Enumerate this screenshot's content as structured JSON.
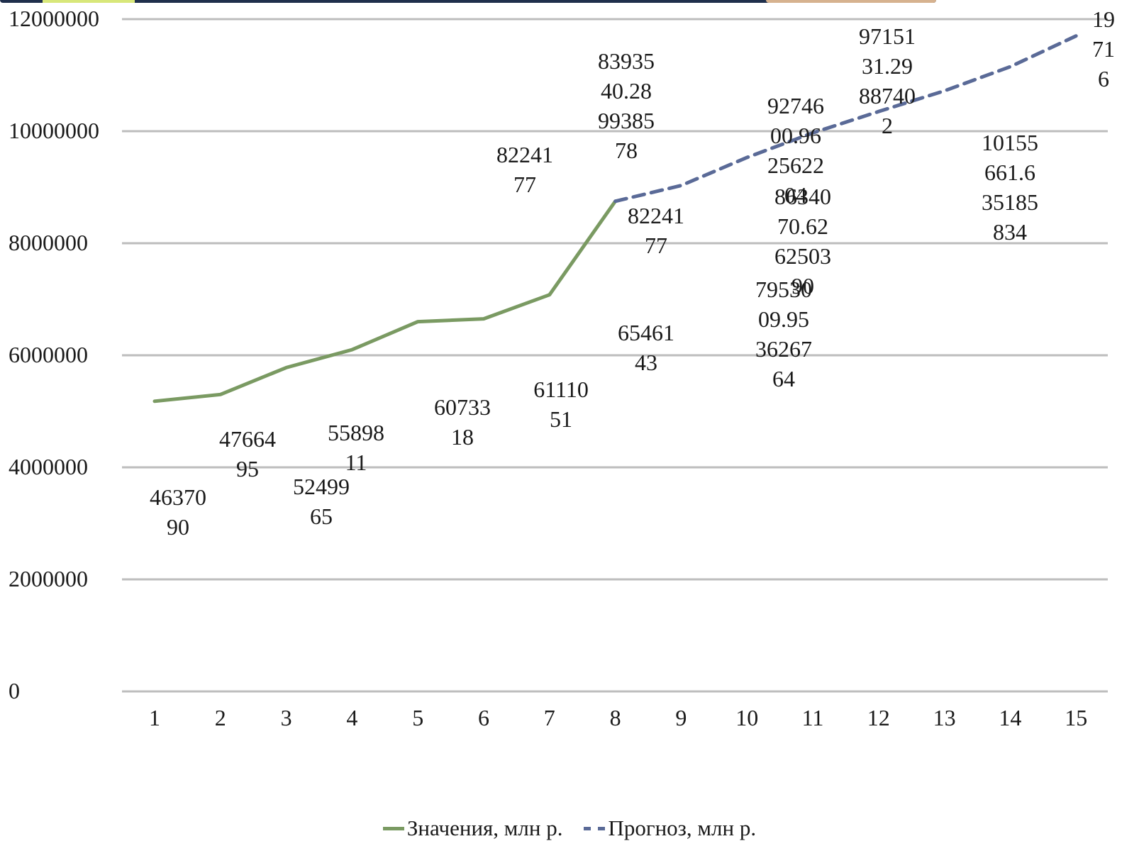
{
  "colors": {
    "values_line": "#7a9a62",
    "forecast_line": "#5a6a97",
    "grid": "#bdbdbd"
  },
  "legend": {
    "values_label": "Значения, млн р.",
    "forecast_label": "Прогноз, млн р."
  },
  "chart_data": {
    "type": "line",
    "title": "",
    "xlabel": "",
    "ylabel": "",
    "x": [
      "1",
      "2",
      "3",
      "4",
      "5",
      "6",
      "7",
      "8",
      "9",
      "10",
      "11",
      "12",
      "13",
      "14",
      "15"
    ],
    "ylim": [
      0,
      12000000
    ],
    "yticks": [
      "0",
      "2000000",
      "4000000",
      "6000000",
      "8000000",
      "10000000",
      "12000000"
    ],
    "grid": true,
    "legend_position": "bottom",
    "series": [
      {
        "name": "Значения, млн р.",
        "style": "solid",
        "x": [
          1,
          2,
          3,
          4,
          5,
          6,
          7,
          8
        ],
        "y": [
          5180000,
          5300000,
          5780000,
          6100000,
          6600000,
          6650000,
          7080000,
          8750000
        ]
      },
      {
        "name": "Прогноз, млн р.",
        "style": "dashed",
        "x": [
          8,
          9,
          10,
          11,
          12,
          13,
          14,
          15
        ],
        "y": [
          8750000,
          9030000,
          9530000,
          9970000,
          10350000,
          10720000,
          11150000,
          11700000
        ]
      }
    ],
    "annotations": [
      {
        "id": "1",
        "lines": [
          "46370",
          "90"
        ]
      },
      {
        "id": "2",
        "lines": [
          "47664",
          "95"
        ]
      },
      {
        "id": "3",
        "lines": [
          "52499",
          "65"
        ]
      },
      {
        "id": "4",
        "lines": [
          "55898",
          "11"
        ]
      },
      {
        "id": "5",
        "lines": [
          "60733",
          "18"
        ]
      },
      {
        "id": "6",
        "lines": [
          "61110",
          "51"
        ]
      },
      {
        "id": "7",
        "lines": [
          "82241",
          "77"
        ]
      },
      {
        "id": "8",
        "lines": [
          "83935",
          "40.28",
          "99385",
          "78"
        ]
      },
      {
        "id": "9",
        "lines": [
          "82241",
          "77"
        ]
      },
      {
        "id": "10",
        "lines": [
          "65461",
          "43"
        ]
      },
      {
        "id": "11",
        "lines": [
          "92746",
          "00.96",
          "25622",
          "04"
        ]
      },
      {
        "id": "12",
        "lines": [
          "86340",
          "70.62",
          "62503",
          "90"
        ]
      },
      {
        "id": "13",
        "lines": [
          "79530",
          "09.95",
          "36267",
          "64"
        ]
      },
      {
        "id": "14",
        "lines": [
          "97151",
          "31.29",
          "88740",
          "2"
        ]
      },
      {
        "id": "15",
        "lines": [
          "10155",
          "661.6",
          "35185",
          "834"
        ]
      },
      {
        "id": "16",
        "lines": [
          "19",
          "71",
          "6"
        ]
      }
    ]
  }
}
